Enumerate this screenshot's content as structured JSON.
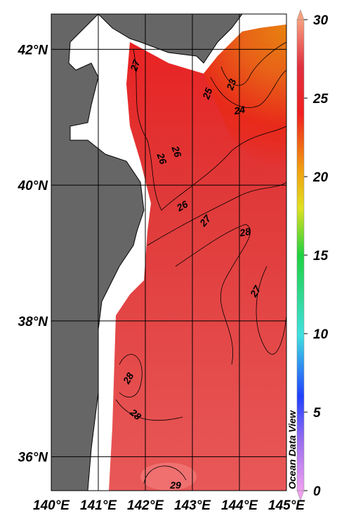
{
  "map": {
    "xlim": [
      140,
      145
    ],
    "ylim": [
      35.5,
      42.52
    ],
    "xticks": [
      {
        "value": 140,
        "label": "140°E"
      },
      {
        "value": 141,
        "label": "141°E"
      },
      {
        "value": 142,
        "label": "142°E"
      },
      {
        "value": 143,
        "label": "143°E"
      },
      {
        "value": 144,
        "label": "144°E"
      },
      {
        "value": 145,
        "label": "145°E"
      }
    ],
    "yticks": [
      {
        "value": 36,
        "label": "36°N"
      },
      {
        "value": 38,
        "label": "38°N"
      },
      {
        "value": 40,
        "label": "40°N"
      },
      {
        "value": 42,
        "label": "42°N"
      }
    ],
    "colorbar": {
      "lim": [
        0,
        30
      ],
      "ticks": [
        0,
        5,
        10,
        15,
        20,
        25,
        30
      ]
    },
    "contour_labels": [
      27,
      25,
      23,
      24,
      26,
      26,
      26,
      27,
      28,
      27,
      28,
      28,
      29
    ],
    "watermark": "Ocean Data View"
  }
}
